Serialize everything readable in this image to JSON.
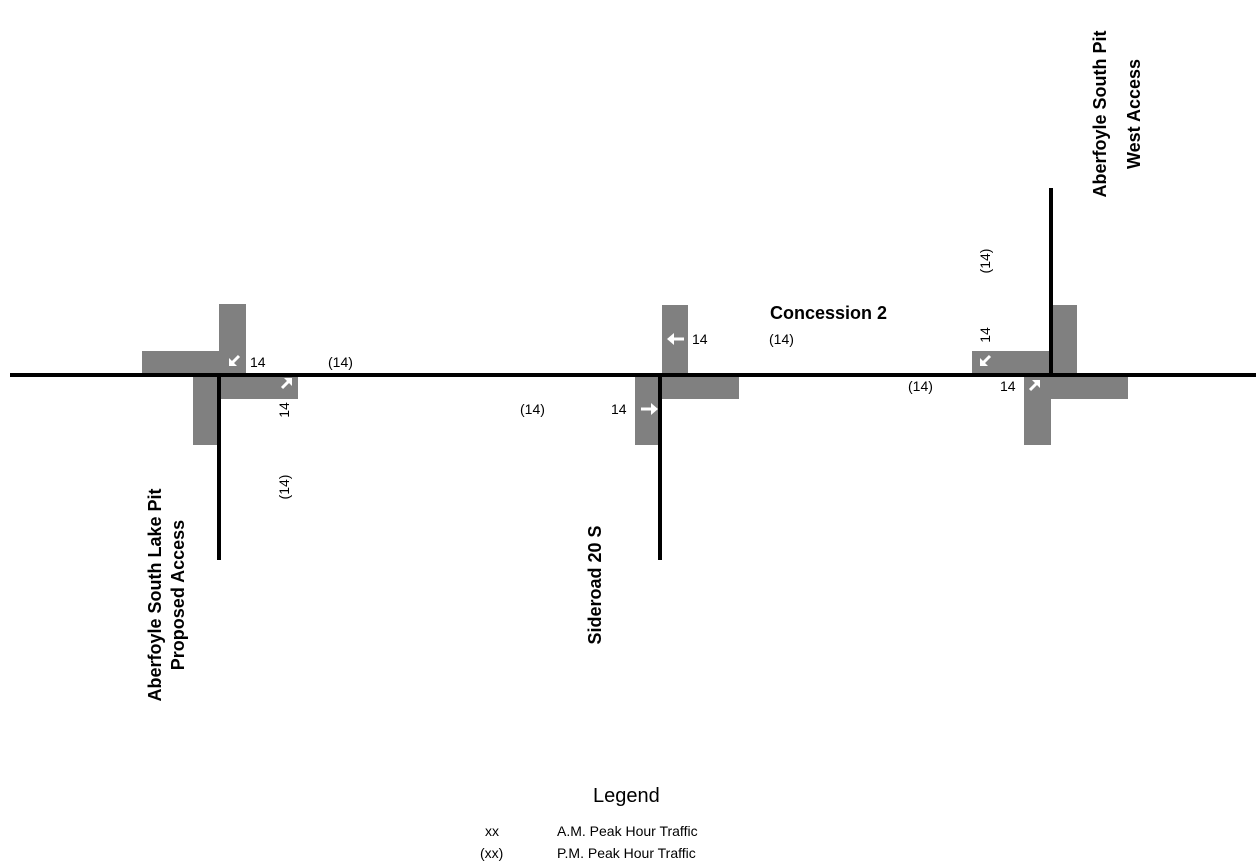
{
  "colors": {
    "road": "#000000",
    "lane_block": "#808080",
    "arrow": "#ffffff",
    "text": "#000000"
  },
  "roads": {
    "main": "Concession 2",
    "sideroad": "Sideroad 20 S",
    "west_access_line1": "Aberfoyle South Lake Pit",
    "west_access_line2": "Proposed Access",
    "east_access_line1": "Aberfoyle South Pit",
    "east_access_line2": "West Access"
  },
  "intersections": {
    "proposed_access": {
      "wb_right_am": "14",
      "wb_right_pm": "(14)",
      "outbound_am": "14",
      "outbound_pm": "(14)"
    },
    "sideroad": {
      "wb_through_am": "14",
      "wb_through_pm": "(14)",
      "nb_through_am": "14",
      "nb_through_pm": "(14)"
    },
    "west_access": {
      "sb_right_am": "14",
      "sb_right_pm": "(14)",
      "nb_left_am": "14",
      "nb_left_pm": "(14)"
    }
  },
  "icons": [
    "arrow-down-left-icon",
    "arrow-up-right-icon",
    "arrow-left-icon",
    "arrow-right-icon"
  ],
  "legend": {
    "title": "Legend",
    "am_symbol": "xx",
    "am_label": "A.M. Peak Hour Traffic",
    "pm_symbol": "(xx)",
    "pm_label": "P.M. Peak Hour Traffic"
  }
}
